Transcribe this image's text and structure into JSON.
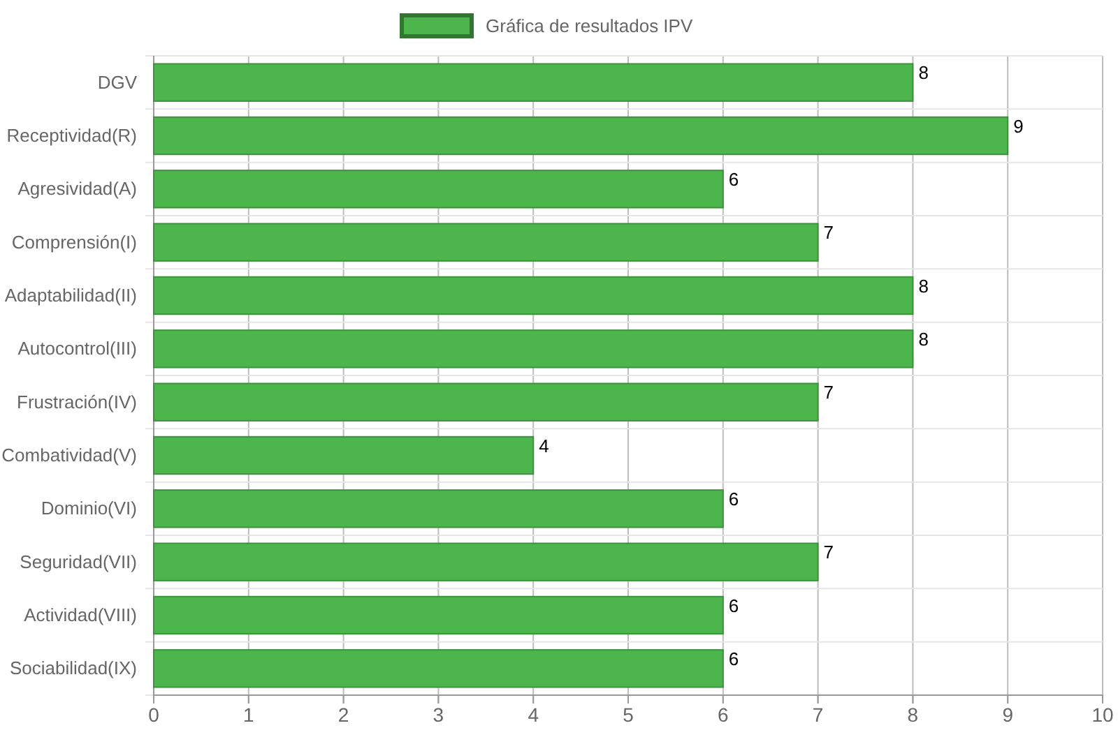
{
  "chart_data": {
    "type": "bar",
    "orientation": "horizontal",
    "categories": [
      "DGV",
      "Receptividad(R)",
      "Agresividad(A)",
      "Comprensión(I)",
      "Adaptabilidad(II)",
      "Autocontrol(III)",
      "Frustración(IV)",
      "Combatividad(V)",
      "Dominio(VI)",
      "Seguridad(VII)",
      "Actividad(VIII)",
      "Sociabilidad(IX)"
    ],
    "series": [
      {
        "name": "Gráfica de resultados IPV",
        "color": "#4cb54c",
        "values": [
          8,
          9,
          6,
          7,
          8,
          8,
          7,
          4,
          6,
          7,
          6,
          6
        ]
      }
    ],
    "xlim": [
      0,
      10
    ],
    "xticks": [
      0,
      1,
      2,
      3,
      4,
      5,
      6,
      7,
      8,
      9,
      10
    ],
    "grid": true,
    "legend": "top",
    "data_labels": true
  }
}
